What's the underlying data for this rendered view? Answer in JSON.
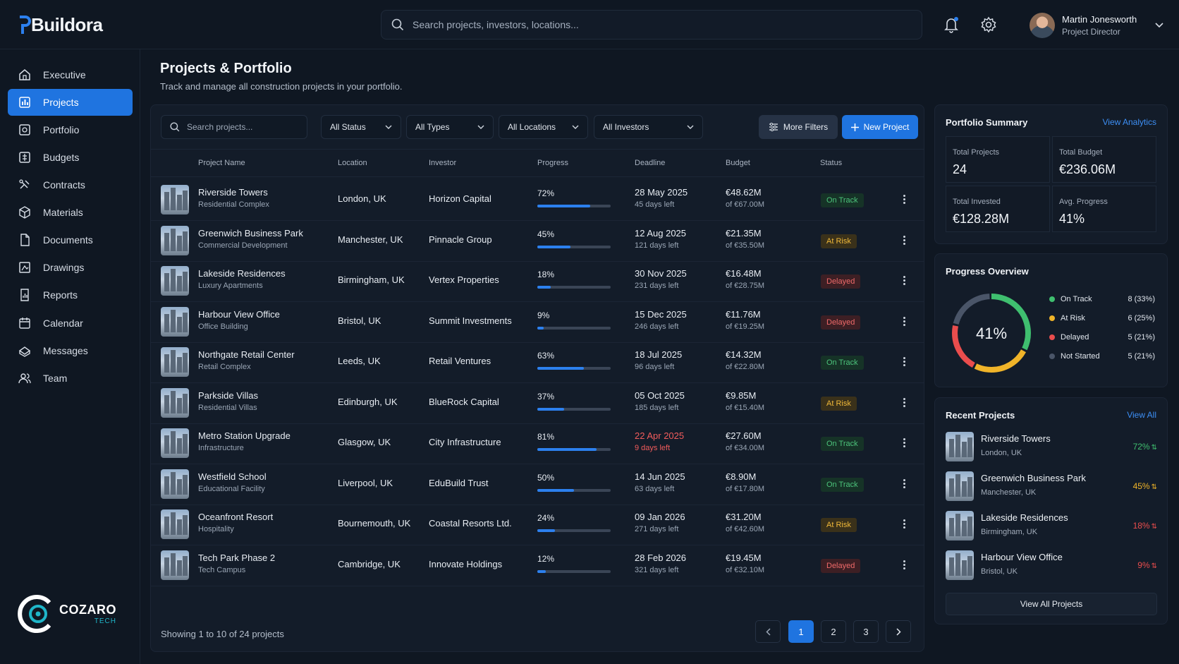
{
  "app": {
    "name": "Buildora"
  },
  "search": {
    "placeholder": "Search projects, investors, locations..."
  },
  "user": {
    "name": "Martin Jonesworth",
    "role": "Project Director"
  },
  "sidebar": {
    "items": [
      {
        "label": "Executive",
        "icon": "home-icon"
      },
      {
        "label": "Projects",
        "icon": "projects-icon",
        "active": true
      },
      {
        "label": "Portfolio",
        "icon": "portfolio-icon"
      },
      {
        "label": "Budgets",
        "icon": "budget-icon"
      },
      {
        "label": "Contracts",
        "icon": "contract-icon"
      },
      {
        "label": "Materials",
        "icon": "materials-icon"
      },
      {
        "label": "Documents",
        "icon": "document-icon"
      },
      {
        "label": "Drawings",
        "icon": "drawing-icon"
      },
      {
        "label": "Reports",
        "icon": "report-icon"
      },
      {
        "label": "Calendar",
        "icon": "calendar-icon"
      },
      {
        "label": "Messages",
        "icon": "message-icon"
      },
      {
        "label": "Team",
        "icon": "team-icon"
      }
    ]
  },
  "brand": {
    "name": "COZARO",
    "sub": "TECH"
  },
  "page": {
    "title": "Projects & Portfolio",
    "subtitle": "Track and manage all construction projects in your portfolio."
  },
  "filters": {
    "search_placeholder": "Search projects...",
    "status": "All Status",
    "types": "All Types",
    "locations": "All Locations",
    "investors": "All Investors",
    "more": "More Filters",
    "new": "New Project"
  },
  "table": {
    "columns": [
      "Project Name",
      "Location",
      "Investor",
      "Progress",
      "Deadline",
      "Budget",
      "Status"
    ],
    "rows": [
      {
        "name": "Riverside Towers",
        "type": "Residential Complex",
        "location": "London, UK",
        "investor": "Horizon Capital",
        "progress": 72,
        "progress_label": "72%",
        "deadline": "28 May 2025",
        "days": "45 days left",
        "budget": "€48.62M",
        "budget_of": "of €67.00M",
        "status": "On Track",
        "status_kind": "ok"
      },
      {
        "name": "Greenwich Business Park",
        "type": "Commercial Development",
        "location": "Manchester, UK",
        "investor": "Pinnacle Group",
        "progress": 45,
        "progress_label": "45%",
        "deadline": "12 Aug 2025",
        "days": "121 days left",
        "budget": "€21.35M",
        "budget_of": "of €35.50M",
        "status": "At Risk",
        "status_kind": "risk"
      },
      {
        "name": "Lakeside Residences",
        "type": "Luxury Apartments",
        "location": "Birmingham, UK",
        "investor": "Vertex Properties",
        "progress": 18,
        "progress_label": "18%",
        "deadline": "30 Nov 2025",
        "days": "231 days left",
        "budget": "€16.48M",
        "budget_of": "of €28.75M",
        "status": "Delayed",
        "status_kind": "del"
      },
      {
        "name": "Harbour View Office",
        "type": "Office Building",
        "location": "Bristol, UK",
        "investor": "Summit Investments",
        "progress": 9,
        "progress_label": "9%",
        "deadline": "15 Dec 2025",
        "days": "246 days left",
        "budget": "€11.76M",
        "budget_of": "of €19.25M",
        "status": "Delayed",
        "status_kind": "del"
      },
      {
        "name": "Northgate Retail Center",
        "type": "Retail Complex",
        "location": "Leeds, UK",
        "investor": "Retail Ventures",
        "progress": 63,
        "progress_label": "63%",
        "deadline": "18 Jul 2025",
        "days": "96 days left",
        "budget": "€14.32M",
        "budget_of": "of €22.80M",
        "status": "On Track",
        "status_kind": "ok"
      },
      {
        "name": "Parkside Villas",
        "type": "Residential Villas",
        "location": "Edinburgh, UK",
        "investor": "BlueRock Capital",
        "progress": 37,
        "progress_label": "37%",
        "deadline": "05 Oct 2025",
        "days": "185 days left",
        "budget": "€9.85M",
        "budget_of": "of €15.40M",
        "status": "At Risk",
        "status_kind": "risk"
      },
      {
        "name": "Metro Station Upgrade",
        "type": "Infrastructure",
        "location": "Glasgow, UK",
        "investor": "City Infrastructure",
        "progress": 81,
        "progress_label": "81%",
        "deadline": "22 Apr 2025",
        "days": "9 days left",
        "deadline_urgent": true,
        "budget": "€27.60M",
        "budget_of": "of €34.00M",
        "status": "On Track",
        "status_kind": "ok"
      },
      {
        "name": "Westfield School",
        "type": "Educational Facility",
        "location": "Liverpool, UK",
        "investor": "EduBuild Trust",
        "progress": 50,
        "progress_label": "50%",
        "deadline": "14 Jun 2025",
        "days": "63 days left",
        "budget": "€8.90M",
        "budget_of": "of €17.80M",
        "status": "On Track",
        "status_kind": "ok"
      },
      {
        "name": "Oceanfront Resort",
        "type": "Hospitality",
        "location": "Bournemouth, UK",
        "investor": "Coastal Resorts Ltd.",
        "progress": 24,
        "progress_label": "24%",
        "deadline": "09 Jan 2026",
        "days": "271 days left",
        "budget": "€31.20M",
        "budget_of": "of €42.60M",
        "status": "At Risk",
        "status_kind": "risk"
      },
      {
        "name": "Tech Park Phase 2",
        "type": "Tech Campus",
        "location": "Cambridge, UK",
        "investor": "Innovate Holdings",
        "progress": 12,
        "progress_label": "12%",
        "deadline": "28 Feb 2026",
        "days": "321 days left",
        "budget": "€19.45M",
        "budget_of": "of €32.10M",
        "status": "Delayed",
        "status_kind": "del"
      }
    ],
    "footer": "Showing 1 to 10 of 24 projects",
    "pages": [
      "1",
      "2",
      "3"
    ]
  },
  "summary": {
    "title": "Portfolio Summary",
    "link": "View Analytics",
    "stats": [
      {
        "label": "Total Projects",
        "value": "24"
      },
      {
        "label": "Total Budget",
        "value": "€236.06M"
      },
      {
        "label": "Total Invested",
        "value": "€128.28M"
      },
      {
        "label": "Avg. Progress",
        "value": "41%"
      }
    ]
  },
  "overview": {
    "title": "Progress Overview",
    "center": "41%",
    "legend": [
      {
        "label": "On Track",
        "count": "8 (33%)",
        "color": "#3fbf6f",
        "share": 33
      },
      {
        "label": "At Risk",
        "count": "6 (25%)",
        "color": "#f0b429",
        "share": 25
      },
      {
        "label": "Delayed",
        "count": "5 (21%)",
        "color": "#ea4d4d",
        "share": 21
      },
      {
        "label": "Not Started",
        "count": "5 (21%)",
        "color": "#4a5568",
        "share": 21
      }
    ]
  },
  "recent": {
    "title": "Recent Projects",
    "link": "View All",
    "items": [
      {
        "name": "Riverside Towers",
        "location": "London, UK",
        "pct": "72%",
        "color": "#3fbf6f"
      },
      {
        "name": "Greenwich Business Park",
        "location": "Manchester, UK",
        "pct": "45%",
        "color": "#f0b429"
      },
      {
        "name": "Lakeside Residences",
        "location": "Birmingham, UK",
        "pct": "18%",
        "color": "#ea4d4d"
      },
      {
        "name": "Harbour View Office",
        "location": "Bristol, UK",
        "pct": "9%",
        "color": "#ea4d4d"
      }
    ],
    "button": "View All Projects"
  }
}
